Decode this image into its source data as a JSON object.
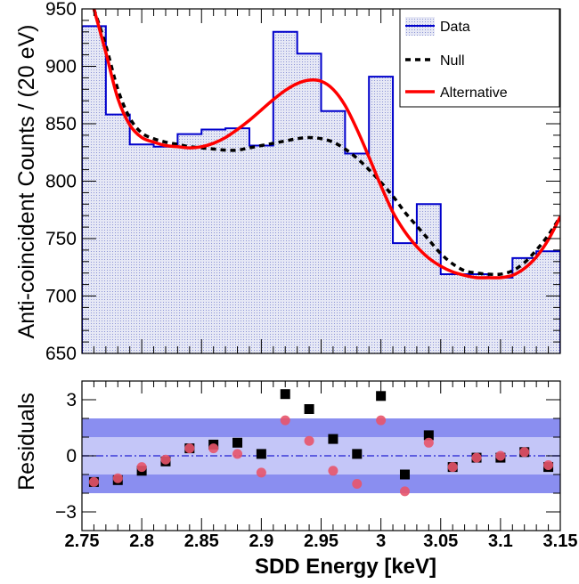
{
  "chart_data": [
    {
      "type": "line",
      "panel": "main",
      "xlabel": "",
      "ylabel": "Anti-coincident Counts / (20 eV)",
      "xlim": [
        2.75,
        3.15
      ],
      "ylim": [
        650,
        950
      ],
      "yticks": [
        "650",
        "700",
        "750",
        "800",
        "850",
        "900",
        "950"
      ],
      "ytick_values": [
        650,
        700,
        750,
        800,
        850,
        900,
        950
      ],
      "legend": {
        "position": "top-right",
        "entries": [
          "Data",
          "Null",
          "Alternative"
        ]
      },
      "colors": {
        "data": "#0000cc",
        "fill": "#c8cdea",
        "null": "#000000",
        "alternative": "#ff0000"
      },
      "histogram": {
        "name": "Data",
        "bin_edges": [
          2.75,
          2.77,
          2.79,
          2.81,
          2.83,
          2.85,
          2.87,
          2.89,
          2.91,
          2.93,
          2.95,
          2.97,
          2.99,
          3.01,
          3.03,
          3.05,
          3.07,
          3.09,
          3.11,
          3.13,
          3.15
        ],
        "values": [
          935,
          858,
          832,
          830,
          841,
          845,
          846,
          831,
          930,
          911,
          861,
          824,
          891,
          746,
          780,
          719,
          719,
          716,
          733,
          739
        ]
      },
      "series": [
        {
          "name": "Null",
          "style": "dashed",
          "x": [
            2.76,
            2.77,
            2.78,
            2.79,
            2.8,
            2.81,
            2.82,
            2.83,
            2.84,
            2.85,
            2.86,
            2.87,
            2.88,
            2.89,
            2.9,
            2.91,
            2.92,
            2.93,
            2.94,
            2.95,
            2.96,
            2.97,
            2.98,
            2.99,
            3.0,
            3.01,
            3.02,
            3.03,
            3.04,
            3.05,
            3.06,
            3.07,
            3.08,
            3.09,
            3.1,
            3.11,
            3.12,
            3.13,
            3.14,
            3.15
          ],
          "y": [
            950,
            918,
            880,
            855,
            842,
            837,
            834,
            832,
            830,
            829,
            828,
            827,
            827,
            829,
            831,
            833,
            835,
            837,
            838,
            837,
            834,
            828,
            820,
            810,
            799,
            787,
            773,
            761,
            749,
            737,
            728,
            722,
            720,
            719,
            719,
            722,
            729,
            740,
            753,
            769
          ]
        },
        {
          "name": "Alternative",
          "style": "solid",
          "x": [
            2.76,
            2.77,
            2.78,
            2.79,
            2.8,
            2.81,
            2.82,
            2.83,
            2.84,
            2.85,
            2.86,
            2.87,
            2.88,
            2.89,
            2.9,
            2.91,
            2.92,
            2.93,
            2.94,
            2.95,
            2.96,
            2.97,
            2.98,
            2.99,
            3.0,
            3.01,
            3.02,
            3.03,
            3.04,
            3.05,
            3.06,
            3.07,
            3.08,
            3.09,
            3.1,
            3.11,
            3.12,
            3.13,
            3.14,
            3.15
          ],
          "y": [
            950,
            912,
            872,
            849,
            838,
            834,
            831,
            830,
            829,
            830,
            833,
            838,
            845,
            853,
            862,
            871,
            879,
            885,
            888,
            887,
            880,
            866,
            845,
            821,
            796,
            773,
            756,
            743,
            733,
            726,
            721,
            718,
            716,
            716,
            716,
            718,
            724,
            734,
            749,
            769
          ]
        }
      ]
    },
    {
      "type": "scatter",
      "panel": "residuals",
      "xlabel": "SDD Energy [keV]",
      "ylabel": "Residuals",
      "xlim": [
        2.75,
        3.15
      ],
      "ylim": [
        -4,
        4
      ],
      "xticks": [
        "2.75",
        "2.8",
        "2.85",
        "2.9",
        "2.95",
        "3",
        "3.05",
        "3.1",
        "3.15"
      ],
      "xtick_values": [
        2.75,
        2.8,
        2.85,
        2.9,
        2.95,
        3.0,
        3.05,
        3.1,
        3.15
      ],
      "yticks": [
        "−3",
        "0",
        "3"
      ],
      "ytick_values": [
        -3,
        0,
        3
      ],
      "bands": {
        "inner": [
          -1,
          1
        ],
        "outer": [
          -2,
          2
        ]
      },
      "colors": {
        "null_residual": "#000000",
        "alt_residual": "#e8546a",
        "band_outer": "#8a8ef0",
        "band_inner": "#c4c6f8",
        "zero_line": "#3c3cd8"
      },
      "x": [
        2.76,
        2.78,
        2.8,
        2.82,
        2.84,
        2.86,
        2.88,
        2.9,
        2.92,
        2.94,
        2.96,
        2.98,
        3.0,
        3.02,
        3.04,
        3.06,
        3.08,
        3.1,
        3.12,
        3.14
      ],
      "series": [
        {
          "name": "Null",
          "values": [
            -1.4,
            -1.3,
            -0.8,
            -0.3,
            0.4,
            0.6,
            0.7,
            0.1,
            3.3,
            2.5,
            0.9,
            0.1,
            3.2,
            -1.0,
            1.1,
            -0.6,
            -0.1,
            -0.1,
            0.2,
            -0.6
          ]
        },
        {
          "name": "Alternative",
          "values": [
            -1.4,
            -1.2,
            -0.6,
            -0.2,
            0.4,
            0.4,
            0.1,
            -0.9,
            1.9,
            0.8,
            -0.8,
            -1.5,
            1.9,
            -1.9,
            0.7,
            -0.6,
            -0.1,
            0.0,
            0.2,
            -0.5
          ]
        }
      ]
    }
  ]
}
